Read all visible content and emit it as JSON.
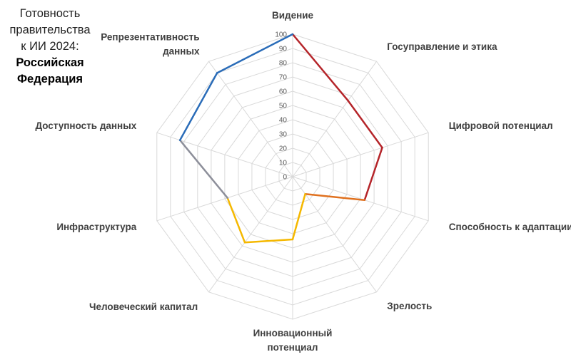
{
  "title": {
    "line1": "Готовность",
    "line2": "правительства",
    "line3": "к ИИ 2024:",
    "country_line1": "Российская",
    "country_line2": "Федерация"
  },
  "chart_data": {
    "type": "radar",
    "title": "Готовность правительства к ИИ 2024: Российская Федерация",
    "axes": [
      "Видение",
      "Госуправление и этика",
      "Цифровой потенциал",
      "Способность к адаптации",
      "Зрелость",
      "Инновационный потенциал",
      "Человеческий капитал",
      "Инфраструктура",
      "Доступность данных",
      "Репрезентативность данных"
    ],
    "axis_labels": [
      [
        "Видение"
      ],
      [
        "Госуправление и этика"
      ],
      [
        "Цифровой потенциал"
      ],
      [
        "Способность к адаптации"
      ],
      [
        "Зрелость"
      ],
      [
        "Инновационный",
        "потенциал"
      ],
      [
        "Человеческий капитал"
      ],
      [
        "Инфраструктура"
      ],
      [
        "Доступность данных"
      ],
      [
        "Репрезентативность",
        "данных"
      ]
    ],
    "values": [
      100,
      66,
      66,
      53,
      15,
      44,
      57,
      48,
      83,
      90
    ],
    "segment_colors": [
      "#b5252a",
      "#b5252a",
      "#b5252a",
      "#e0711f",
      "#f5b800",
      "#f5b800",
      "#f5b800",
      "#8d8f9a",
      "#2a6cb8",
      "#2a6cb8"
    ],
    "range": [
      0,
      100
    ],
    "ticks": [
      0,
      10,
      20,
      30,
      40,
      50,
      60,
      70,
      80,
      90,
      100
    ],
    "grid": true,
    "colors": {
      "government": "#b5252a",
      "adaptation": "#e0711f",
      "technology": "#f5b800",
      "infrastructure": "#8d8f9a",
      "data": "#2a6cb8",
      "grid": "#d9d9d9"
    }
  }
}
